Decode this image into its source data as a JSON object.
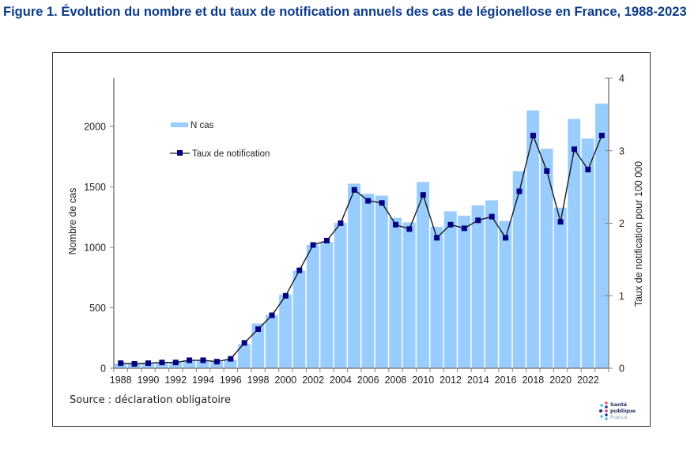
{
  "figure": {
    "title": "Figure 1. Évolution du nombre et du taux de notification annuels des cas de légionellose en France, 1988-2023",
    "source": "Source : déclaration obligatoire",
    "logo": {
      "line1": "Santé",
      "line2": "publique",
      "line3": "France"
    }
  },
  "colors": {
    "title": "#0b3a8c",
    "bars": "#99ccff",
    "line": "#1a1a1a",
    "markers": "#000080",
    "axis": "#808080"
  },
  "chart_data": {
    "type": "bar+line",
    "title": "Évolution du nombre et du taux de notification annuels des cas de légionellose en France, 1988-2023",
    "xlabel": "",
    "ylabel": "Nombre de cas",
    "y2label": "Taux de notification  pour 100 000",
    "ylim": [
      0,
      2400
    ],
    "y2lim": [
      0,
      4
    ],
    "yticks": [
      0,
      500,
      1000,
      1500,
      2000
    ],
    "y2ticks": [
      0,
      1,
      2,
      3,
      4
    ],
    "x_tick_labels": [
      "1988",
      "1990",
      "1992",
      "1994",
      "1996",
      "1998",
      "2000",
      "2002",
      "2004",
      "2006",
      "2008",
      "2010",
      "2012",
      "2014",
      "2016",
      "2018",
      "2020",
      "2022"
    ],
    "grid": false,
    "legend_position": "top-left",
    "categories": [
      1988,
      1989,
      1990,
      1991,
      1992,
      1993,
      1994,
      1995,
      1996,
      1997,
      1998,
      1999,
      2000,
      2001,
      2002,
      2003,
      2004,
      2005,
      2006,
      2007,
      2008,
      2009,
      2010,
      2011,
      2012,
      2013,
      2014,
      2015,
      2016,
      2017,
      2018,
      2019,
      2020,
      2021,
      2022,
      2023
    ],
    "series": [
      {
        "name": "N cas",
        "type": "bar",
        "axis": "left",
        "values": [
          38,
          35,
          43,
          45,
          48,
          65,
          67,
          55,
          70,
          200,
          370,
          440,
          610,
          807,
          1021,
          1044,
          1202,
          1527,
          1443,
          1428,
          1244,
          1206,
          1540,
          1170,
          1298,
          1262,
          1348,
          1389,
          1218,
          1630,
          2133,
          1816,
          1328,
          2062,
          1900,
          2188
        ]
      },
      {
        "name": "Taux de notification",
        "type": "line",
        "axis": "right",
        "values": [
          0.07,
          0.06,
          0.07,
          0.08,
          0.08,
          0.11,
          0.11,
          0.09,
          0.13,
          0.35,
          0.54,
          0.73,
          1.0,
          1.35,
          1.7,
          1.76,
          2.0,
          2.46,
          2.31,
          2.28,
          1.98,
          1.92,
          2.39,
          1.8,
          1.98,
          1.93,
          2.04,
          2.09,
          1.8,
          2.44,
          3.21,
          2.72,
          2.02,
          3.02,
          2.74,
          3.21
        ]
      }
    ]
  }
}
